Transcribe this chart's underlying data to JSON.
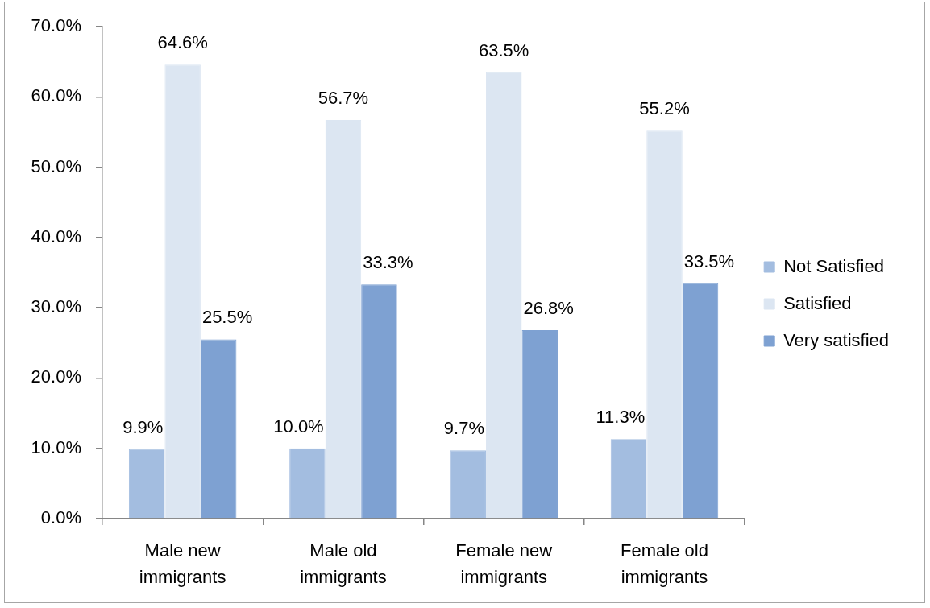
{
  "chart_data": {
    "type": "bar",
    "categories": [
      "Male new immigrants",
      "Male old immigrants",
      "Female new immigrants",
      "Female old immigrants"
    ],
    "series": [
      {
        "name": "Not Satisfied",
        "color": "#a3bde0",
        "values": [
          9.9,
          10.0,
          9.7,
          11.3
        ],
        "value_labels": [
          "9.9%",
          "10.0%",
          "9.7%",
          "11.3%"
        ]
      },
      {
        "name": "Satisfied",
        "color": "#dce6f2",
        "values": [
          64.6,
          56.7,
          63.5,
          55.2
        ],
        "value_labels": [
          "64.6%",
          "56.7%",
          "63.5%",
          "55.2%"
        ]
      },
      {
        "name": "Very satisfied",
        "color": "#7ea1d2",
        "values": [
          25.5,
          33.3,
          26.8,
          33.5
        ],
        "value_labels": [
          "25.5%",
          "33.3%",
          "26.8%",
          "33.5%"
        ]
      }
    ],
    "ylim": [
      0,
      70
    ],
    "yticks": [
      {
        "value": 0,
        "label": "0.0%"
      },
      {
        "value": 10,
        "label": "10.0%"
      },
      {
        "value": 20,
        "label": "20.0%"
      },
      {
        "value": 30,
        "label": "30.0%"
      },
      {
        "value": 40,
        "label": "40.0%"
      },
      {
        "value": 50,
        "label": "50.0%"
      },
      {
        "value": 60,
        "label": "60.0%"
      },
      {
        "value": 70,
        "label": "70.0%"
      }
    ],
    "legend": "right"
  }
}
